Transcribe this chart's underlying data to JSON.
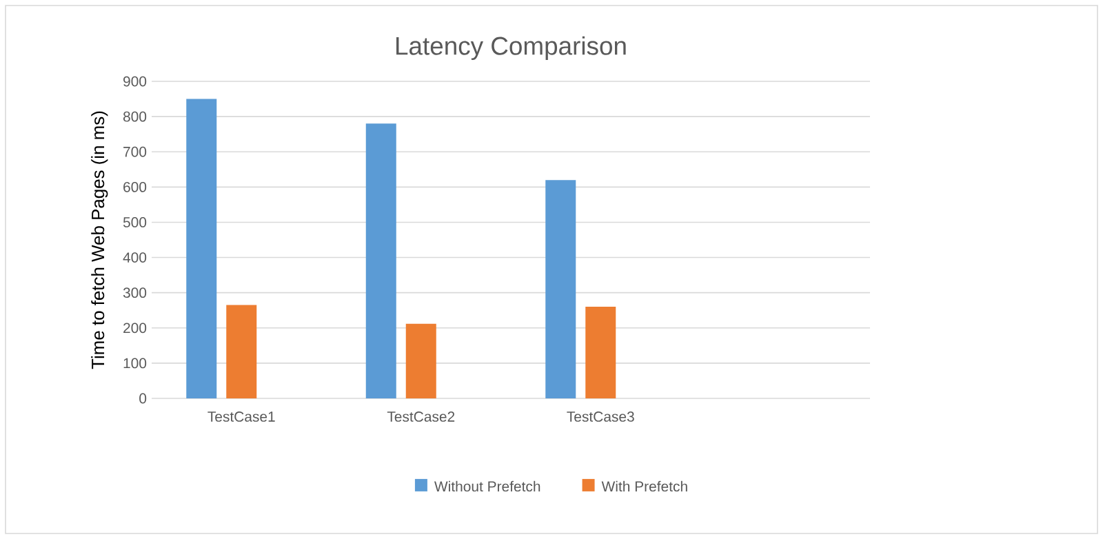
{
  "chart_data": {
    "type": "bar",
    "title": "Latency Comparison",
    "ylabel": "Time to fetch Web Pages (in ms)",
    "categories": [
      "TestCase1",
      "TestCase2",
      "TestCase3",
      null
    ],
    "series": [
      {
        "name": "Without Prefetch",
        "color": "#5b9bd5",
        "values": [
          850,
          780,
          620,
          null
        ]
      },
      {
        "name": "With Prefetch",
        "color": "#ed7d31",
        "values": [
          265,
          212,
          260,
          null
        ]
      }
    ],
    "ylim": [
      0,
      900
    ],
    "yticks": [
      0,
      100,
      200,
      300,
      400,
      500,
      600,
      700,
      800,
      900
    ],
    "grid": "y",
    "legend": "bottom"
  }
}
